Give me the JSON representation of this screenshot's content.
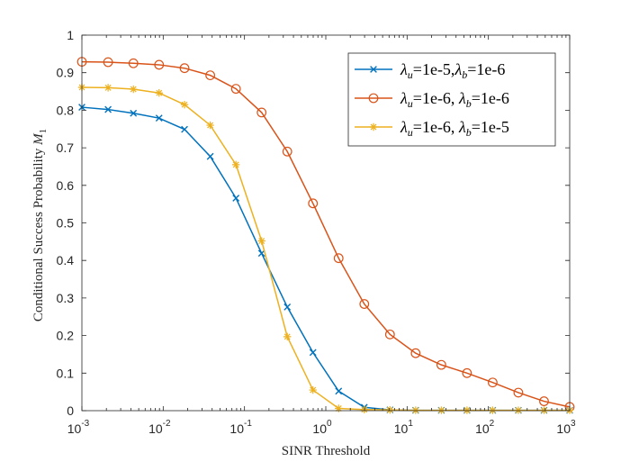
{
  "chart_data": {
    "type": "line",
    "x_scale": "log",
    "xlabel": "SINR Threshold",
    "ylabel_text": "Conditional Success Probability ",
    "ylabel_symbol": "M",
    "ylabel_subscript": "1",
    "xlim": [
      0.001,
      1000
    ],
    "ylim": [
      0,
      1
    ],
    "x_ticks": [
      {
        "value": 0.001,
        "base": "10",
        "exp": "-3"
      },
      {
        "value": 0.01,
        "base": "10",
        "exp": "-2"
      },
      {
        "value": 0.1,
        "base": "10",
        "exp": "-1"
      },
      {
        "value": 1,
        "base": "10",
        "exp": "0"
      },
      {
        "value": 10,
        "base": "10",
        "exp": "1"
      },
      {
        "value": 100,
        "base": "10",
        "exp": "2"
      },
      {
        "value": 1000,
        "base": "10",
        "exp": "3"
      }
    ],
    "y_ticks": [
      {
        "value": 0,
        "label": "0"
      },
      {
        "value": 0.1,
        "label": "0.1"
      },
      {
        "value": 0.2,
        "label": "0.2"
      },
      {
        "value": 0.3,
        "label": "0.3"
      },
      {
        "value": 0.4,
        "label": "0.4"
      },
      {
        "value": 0.5,
        "label": "0.5"
      },
      {
        "value": 0.6,
        "label": "0.6"
      },
      {
        "value": 0.7,
        "label": "0.7"
      },
      {
        "value": 0.8,
        "label": "0.8"
      },
      {
        "value": 0.9,
        "label": "0.9"
      },
      {
        "value": 1,
        "label": "1"
      }
    ],
    "x": [
      0.001,
      0.0021,
      0.0043,
      0.0089,
      0.0183,
      0.0379,
      0.0785,
      0.1624,
      0.336,
      0.6952,
      1.4384,
      2.9764,
      6.1585,
      12.743,
      26.367,
      54.556,
      112.88,
      233.57,
      483.29,
      1000
    ],
    "series": [
      {
        "name": "λu=1e-5,λb=1e-6",
        "legend": {
          "s1": "λ",
          "sub1": "u",
          "mid": "=1e-5,",
          "s2": "λ",
          "sub2": "b",
          "tail": "=1e-6"
        },
        "color": "#0072BD",
        "marker": "x",
        "values": [
          0.808,
          0.802,
          0.792,
          0.779,
          0.749,
          0.677,
          0.566,
          0.419,
          0.276,
          0.155,
          0.052,
          0.009,
          0.002,
          0.001,
          0.001,
          0.001,
          0.001,
          0.001,
          0.001,
          0.001
        ]
      },
      {
        "name": "λu=1e-6, λb=1e-6",
        "legend": {
          "s1": "λ",
          "sub1": "u",
          "mid": "=1e-6, ",
          "s2": "λ",
          "sub2": "b",
          "tail": "=1e-6"
        },
        "color": "#D95319",
        "marker": "o",
        "values": [
          0.929,
          0.928,
          0.925,
          0.921,
          0.912,
          0.893,
          0.857,
          0.794,
          0.69,
          0.552,
          0.406,
          0.284,
          0.203,
          0.153,
          0.122,
          0.1,
          0.075,
          0.048,
          0.025,
          0.01
        ]
      },
      {
        "name": "λu=1e-6, λb=1e-5",
        "legend": {
          "s1": "λ",
          "sub1": "u",
          "mid": "=1e-6, ",
          "s2": "λ",
          "sub2": "b",
          "tail": "=1e-5"
        },
        "color": "#EDB120",
        "marker": "*",
        "values": [
          0.861,
          0.86,
          0.856,
          0.846,
          0.815,
          0.76,
          0.655,
          0.452,
          0.197,
          0.055,
          0.006,
          0.003,
          0.002,
          0.001,
          0.001,
          0.001,
          0.001,
          0.001,
          0.001,
          0.001
        ]
      }
    ],
    "grid": false,
    "legend_position": "top-right"
  }
}
